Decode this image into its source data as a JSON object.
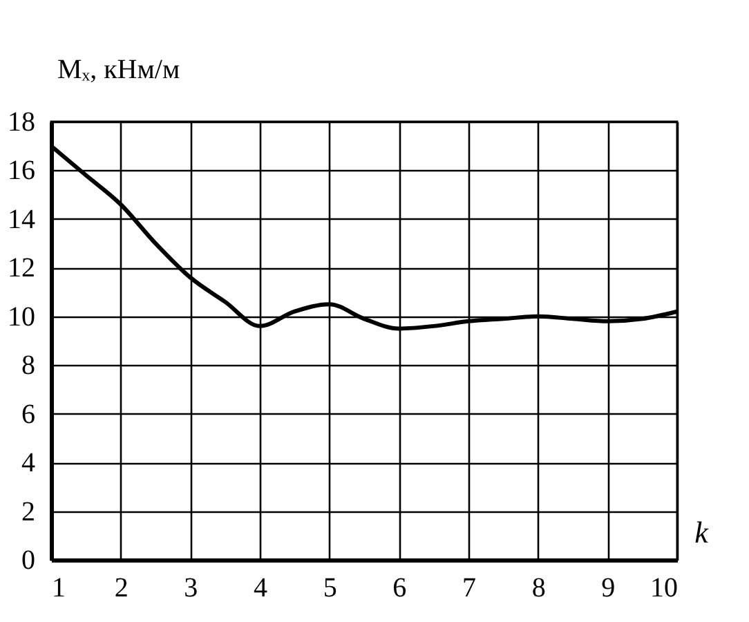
{
  "chart_data": {
    "type": "line",
    "xlabel": "k",
    "ylabel": "Mₓ, кНм/м",
    "x": [
      1,
      1.5,
      2,
      2.5,
      3,
      3.5,
      4,
      4.5,
      5,
      5.5,
      6,
      6.5,
      7,
      7.5,
      8,
      8.5,
      9,
      9.5,
      10
    ],
    "series": [
      {
        "color": "#000000",
        "values": [
          17,
          15.8,
          14.6,
          13.0,
          11.6,
          10.6,
          9.6,
          10.2,
          10.5,
          9.9,
          9.5,
          9.6,
          9.8,
          9.9,
          10,
          9.9,
          9.8,
          9.9,
          10.2
        ]
      }
    ],
    "xlim": [
      1,
      10
    ],
    "ylim": [
      0,
      18
    ],
    "xticks": [
      1,
      2,
      3,
      4,
      5,
      6,
      7,
      8,
      9,
      10
    ],
    "yticks": [
      0,
      2,
      4,
      6,
      8,
      10,
      12,
      14,
      16,
      18
    ],
    "grid": true,
    "marker": "none",
    "line_style": "solid",
    "legend": false
  }
}
